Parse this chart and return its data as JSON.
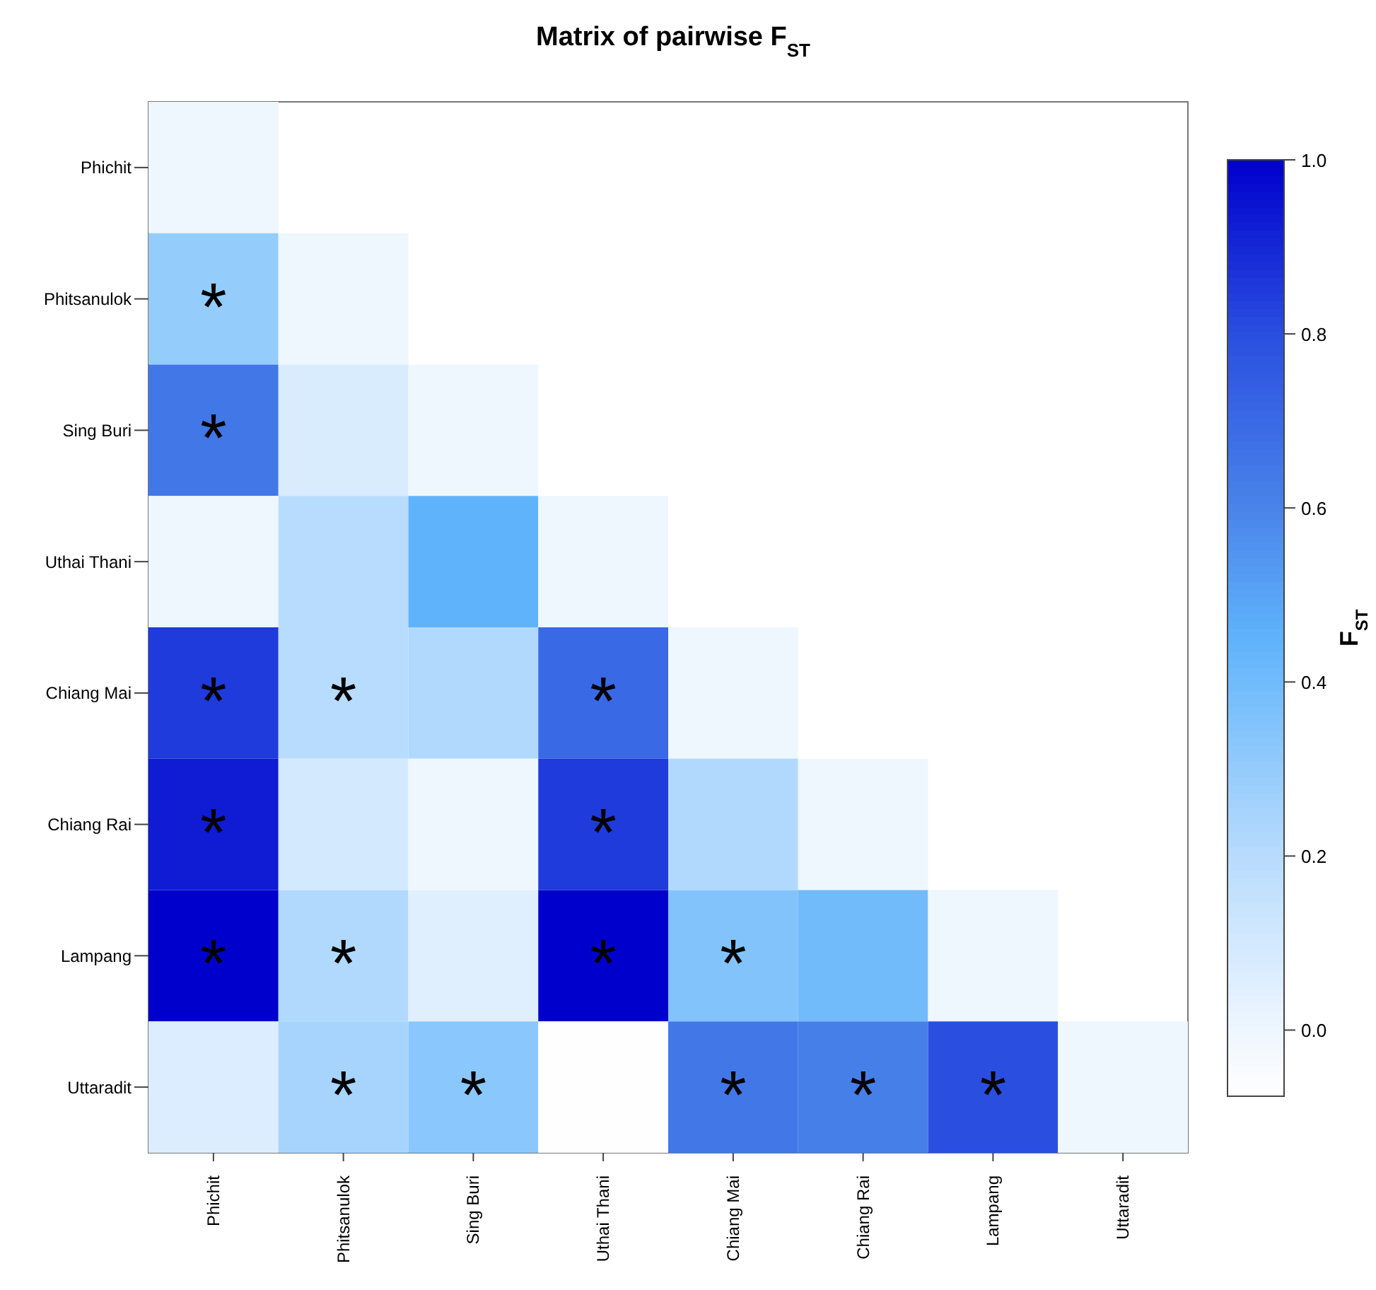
{
  "chart_data": {
    "type": "heatmap",
    "title": "Matrix of pairwise F$_{ST}$",
    "clabel": "F$_{ST}$",
    "categories": [
      "Phichit",
      "Phitsanulok",
      "Sing Buri",
      "Uthai Thani",
      "Chiang Mai",
      "Chiang Rai",
      "Lampang",
      "Uttaradit"
    ],
    "y_categories": [
      "Phichit",
      "Phitsanulok",
      "Sing Buri",
      "Uthai Thani",
      "Chiang Mai",
      "Chiang Rai",
      "Lampang",
      "Uttaradit"
    ],
    "cells": [
      [
        0.0,
        null,
        null,
        null,
        null,
        null,
        null,
        null
      ],
      [
        0.3,
        0.0,
        null,
        null,
        null,
        null,
        null,
        null
      ],
      [
        0.65,
        0.08,
        0.0,
        null,
        null,
        null,
        null,
        null
      ],
      [
        0.0,
        0.2,
        0.45,
        0.0,
        null,
        null,
        null,
        null
      ],
      [
        0.85,
        0.2,
        0.22,
        0.7,
        0.0,
        null,
        null,
        null
      ],
      [
        0.93,
        0.1,
        0.0,
        0.85,
        0.22,
        0.0,
        null,
        null
      ],
      [
        1.0,
        0.22,
        0.05,
        1.0,
        0.35,
        0.4,
        0.0,
        null
      ],
      [
        0.07,
        0.25,
        0.33,
        -0.07,
        0.65,
        0.62,
        0.8,
        0.0
      ]
    ],
    "cell_labels": [
      [
        null,
        null,
        null,
        null,
        null,
        null,
        null,
        null
      ],
      [
        "*",
        null,
        null,
        null,
        null,
        null,
        null,
        null
      ],
      [
        "*",
        null,
        null,
        null,
        null,
        null,
        null,
        null
      ],
      [
        null,
        null,
        null,
        null,
        null,
        null,
        null,
        null
      ],
      [
        "*",
        "*",
        null,
        "*",
        null,
        null,
        null,
        null
      ],
      [
        "*",
        null,
        null,
        "*",
        null,
        null,
        null,
        null
      ],
      [
        "*",
        "*",
        null,
        "*",
        "*",
        null,
        null,
        null
      ],
      [
        null,
        "*",
        "*",
        null,
        "*",
        "*",
        "*",
        null
      ]
    ],
    "clim": [
      -0.076,
      1.0
    ],
    "cticks": [
      {
        "value": 0,
        "label": "0.0"
      },
      {
        "value": 0.2,
        "label": "0.2"
      },
      {
        "value": 0.4,
        "label": "0.4"
      },
      {
        "value": 0.6,
        "label": "0.6"
      },
      {
        "value": 0.8,
        "label": "0.8"
      },
      {
        "value": 1,
        "label": "1.0"
      }
    ]
  }
}
